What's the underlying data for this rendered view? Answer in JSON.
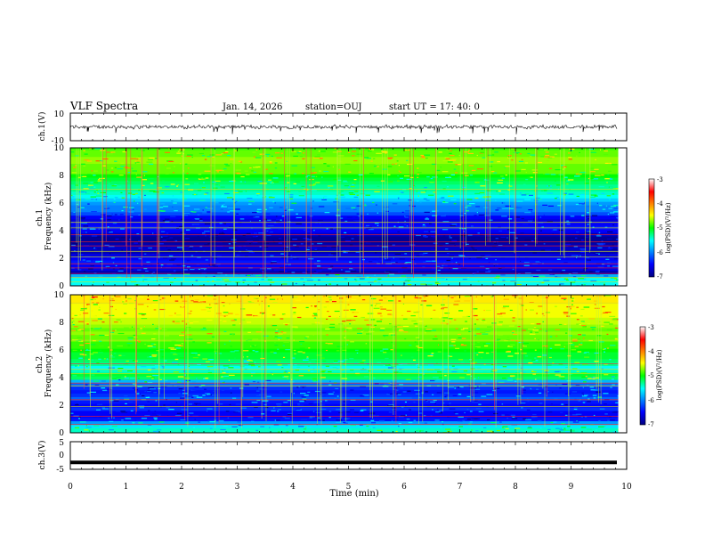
{
  "header": {
    "title": "VLF Spectra",
    "date": "Jan. 14, 2026",
    "station": "station=OUJ",
    "start": "start UT =  17: 40: 0"
  },
  "chart_data": [
    {
      "type": "line",
      "panel": "ch1-waveform",
      "ylabel": "ch.1(V)",
      "ylim": [
        -10,
        10
      ],
      "y_ticks": [
        "10",
        "-10"
      ],
      "xlim": [
        0,
        10
      ],
      "series": [
        {
          "name": "ch.1",
          "level": 0,
          "noise_amplitude": 1.2
        }
      ]
    },
    {
      "type": "heatmap",
      "panel": "ch1-spectrogram",
      "ylabel": "ch.1\nFrequency (kHz)",
      "ylim": [
        0,
        10
      ],
      "y_ticks": [
        "0",
        "2",
        "4",
        "6",
        "8",
        "10"
      ],
      "xlim": [
        0,
        9.85
      ],
      "colorbar": {
        "label": "log(PSD)(V²/Hz)",
        "range": [
          -7,
          -3
        ],
        "ticks": [
          "-3",
          "-4",
          "-5",
          "-6",
          "-7"
        ]
      },
      "dominant_levels": [
        -5.6,
        -5.5,
        -5.5,
        -5.8,
        -6.8,
        -6.6,
        -6.5,
        -6.4,
        -6.5,
        -6.6,
        -6.8,
        -6.7,
        -6.8,
        -6.9,
        -6.9,
        -6.7,
        -6.5,
        -6.4,
        -6.5,
        -6.6,
        -6.5,
        -6.2,
        -6.0,
        -6.0,
        -5.9,
        -5.7,
        -5.5,
        -5.4,
        -5.3,
        -5.3,
        -5.2,
        -5.1,
        -5.0,
        -4.8,
        -4.8,
        -4.8,
        -4.7,
        -4.7,
        -4.8,
        -4.8,
        -4.9
      ],
      "horizontal_lines_khz": [
        0.3,
        0.6,
        0.9,
        1.3,
        1.6,
        2.1,
        2.5,
        2.9,
        3.2,
        3.7,
        4.2,
        4.6,
        7.0
      ],
      "vertical_bursts_min": [
        0.15,
        0.6,
        1.05,
        1.3,
        1.6,
        2.0,
        2.55,
        3.0,
        3.45,
        3.9,
        4.3,
        4.85,
        5.25,
        5.65,
        6.15,
        6.6,
        7.05,
        7.5,
        7.95,
        8.4,
        8.85,
        9.3
      ]
    },
    {
      "type": "heatmap",
      "panel": "ch2-spectrogram",
      "ylabel": "ch.2\nFrequency (kHz)",
      "ylim": [
        0,
        10
      ],
      "y_ticks": [
        "0",
        "2",
        "4",
        "6",
        "8",
        "10"
      ],
      "xlim": [
        0,
        9.85
      ],
      "colorbar": {
        "label": "log(PSD)(V²/Hz)",
        "range": [
          -7,
          -3
        ],
        "ticks": [
          "-3",
          "-4",
          "-5",
          "-6",
          "-7"
        ]
      },
      "dominant_levels": [
        -5.4,
        -5.4,
        -5.6,
        -5.9,
        -6.4,
        -6.5,
        -6.5,
        -6.3,
        -6.5,
        -6.4,
        -6.1,
        -6.3,
        -6.4,
        -6.3,
        -6.1,
        -5.8,
        -5.2,
        -5.1,
        -5.4,
        -5.5,
        -5.3,
        -5.2,
        -5.1,
        -5.1,
        -5.0,
        -4.9,
        -4.9,
        -4.8,
        -4.8,
        -4.7,
        -4.8,
        -4.7,
        -4.6,
        -4.6,
        -4.5,
        -4.5,
        -4.5,
        -4.5,
        -4.4,
        -4.4,
        -4.4
      ],
      "horizontal_lines_khz": [
        0.6,
        1.2,
        1.9,
        2.4,
        3.4,
        3.6,
        4.3,
        4.6,
        5.0,
        6.7,
        9.4
      ],
      "vertical_bursts_min": [
        0.3,
        0.75,
        1.2,
        1.65,
        2.1,
        2.65,
        3.1,
        3.5,
        4.0,
        4.5,
        4.9,
        5.4,
        5.8,
        6.3,
        6.75,
        7.2,
        7.6,
        8.1,
        8.55,
        9.0,
        9.5
      ]
    },
    {
      "type": "line",
      "panel": "ch3-waveform",
      "ylabel": "ch.3(V)",
      "ylim": [
        -5,
        5
      ],
      "y_ticks": [
        "5",
        "0",
        "-5"
      ],
      "xlim": [
        0,
        10
      ],
      "series": [
        {
          "name": "ch.3",
          "level": -2.5,
          "noise_amplitude": 0
        }
      ]
    }
  ],
  "xaxis": {
    "label": "Time (min)",
    "ticks": [
      "0",
      "1",
      "2",
      "3",
      "4",
      "5",
      "6",
      "7",
      "8",
      "9",
      "10"
    ]
  }
}
